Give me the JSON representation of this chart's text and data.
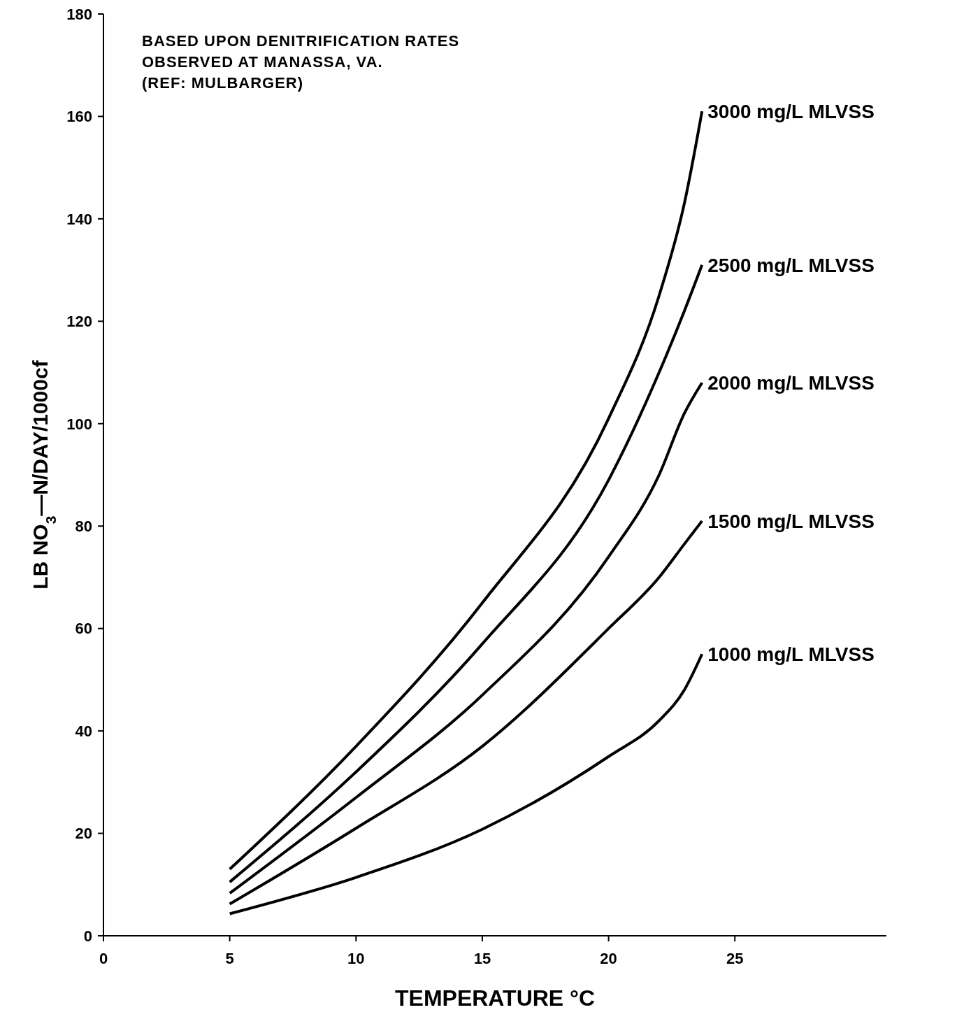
{
  "chart_data": {
    "type": "line",
    "xlabel": "TEMPERATURE °C",
    "ylabel": "LB NO$_{3}$—N/DAY/1000cf",
    "annotations": [
      "BASED UPON DENITRIFICATION RATES",
      "OBSERVED AT MANASSA, VA.",
      "(REF: MULBARGER)"
    ],
    "x": [
      5,
      10,
      15,
      20,
      22,
      23,
      23.7
    ],
    "series": [
      {
        "name": "3000 mg/L MLVSS",
        "color": "#000000",
        "values": [
          13,
          37,
          65,
          101,
          125,
          143,
          161
        ]
      },
      {
        "name": "2500 mg/L MLVSS",
        "color": "#000000",
        "values": [
          10.5,
          32,
          57,
          89,
          110,
          122,
          131
        ]
      },
      {
        "name": "2000 mg/L MLVSS",
        "color": "#000000",
        "values": [
          8.3,
          27,
          47,
          74,
          90,
          102,
          108
        ]
      },
      {
        "name": "1500 mg/L MLVSS",
        "color": "#000000",
        "values": [
          6.2,
          21,
          37,
          60,
          70,
          76.5,
          81
        ]
      },
      {
        "name": "1000 mg/L MLVSS",
        "color": "#000000",
        "values": [
          4.3,
          11.4,
          20.8,
          35,
          42,
          48,
          55
        ]
      }
    ],
    "xlim": [
      0,
      31
    ],
    "xticks": [
      0,
      5,
      10,
      15,
      20,
      25
    ],
    "ylim": [
      0,
      180
    ],
    "yticks": [
      0,
      20,
      40,
      60,
      80,
      100,
      120,
      140,
      160,
      180
    ],
    "grid": false,
    "legend": false,
    "marker": "none",
    "line_style": "solid"
  }
}
